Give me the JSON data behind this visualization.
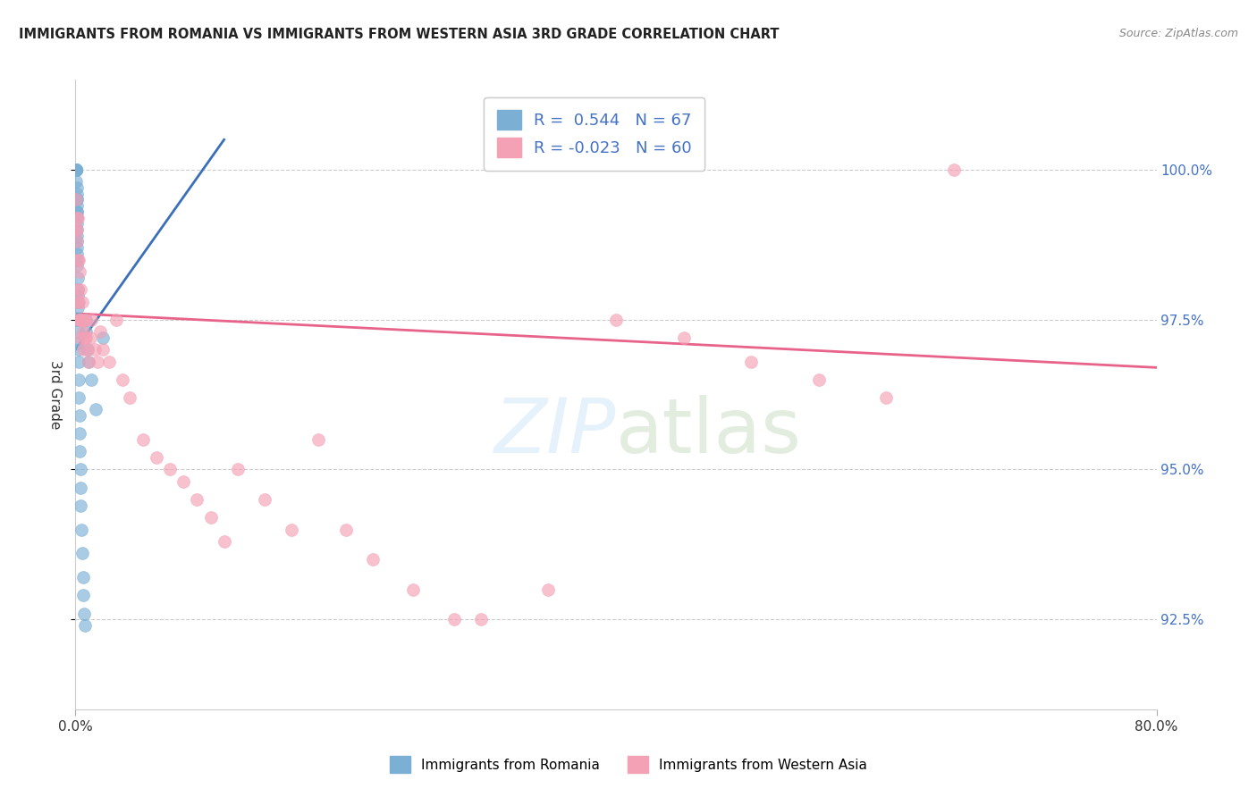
{
  "title": "IMMIGRANTS FROM ROMANIA VS IMMIGRANTS FROM WESTERN ASIA 3RD GRADE CORRELATION CHART",
  "source": "Source: ZipAtlas.com",
  "ylabel": "3rd Grade",
  "xlim": [
    0.0,
    80.0
  ],
  "ylim": [
    91.0,
    101.5
  ],
  "yticks": [
    92.5,
    95.0,
    97.5,
    100.0
  ],
  "ytick_labels": [
    "92.5%",
    "95.0%",
    "97.5%",
    "100.0%"
  ],
  "romania_color": "#7bafd4",
  "western_asia_color": "#f4a0b5",
  "romania_R": "0.544",
  "romania_N": "67",
  "western_asia_R": "-0.023",
  "western_asia_N": "60",
  "romania_line_color": "#3a6fba",
  "western_asia_line_color": "#e8638a",
  "legend_label_romania": "Immigrants from Romania",
  "legend_label_western_asia": "Immigrants from Western Asia",
  "romania_x": [
    0.02,
    0.02,
    0.02,
    0.03,
    0.03,
    0.03,
    0.04,
    0.04,
    0.04,
    0.04,
    0.05,
    0.05,
    0.05,
    0.05,
    0.06,
    0.06,
    0.06,
    0.07,
    0.07,
    0.07,
    0.08,
    0.08,
    0.08,
    0.09,
    0.09,
    0.1,
    0.1,
    0.1,
    0.11,
    0.11,
    0.12,
    0.12,
    0.13,
    0.13,
    0.14,
    0.14,
    0.15,
    0.15,
    0.16,
    0.16,
    0.17,
    0.18,
    0.19,
    0.2,
    0.21,
    0.22,
    0.24,
    0.26,
    0.28,
    0.3,
    0.32,
    0.35,
    0.38,
    0.4,
    0.45,
    0.5,
    0.55,
    0.6,
    0.65,
    0.7,
    0.75,
    0.8,
    0.9,
    1.0,
    1.2,
    1.5,
    2.0
  ],
  "romania_y": [
    100.0,
    100.0,
    100.0,
    100.0,
    100.0,
    100.0,
    100.0,
    100.0,
    100.0,
    100.0,
    100.0,
    100.0,
    100.0,
    100.0,
    100.0,
    100.0,
    100.0,
    100.0,
    100.0,
    99.8,
    99.7,
    99.6,
    99.5,
    99.4,
    99.3,
    99.5,
    99.3,
    99.2,
    99.1,
    99.0,
    98.9,
    98.8,
    98.7,
    98.6,
    98.5,
    98.4,
    98.2,
    98.0,
    97.9,
    97.8,
    97.7,
    97.5,
    97.3,
    97.1,
    97.0,
    96.8,
    96.5,
    96.2,
    95.9,
    95.6,
    95.3,
    95.0,
    94.7,
    94.4,
    94.0,
    93.6,
    93.2,
    92.9,
    92.6,
    92.4,
    97.5,
    97.3,
    97.0,
    96.8,
    96.5,
    96.0,
    97.2
  ],
  "western_asia_x": [
    0.05,
    0.08,
    0.1,
    0.12,
    0.15,
    0.18,
    0.2,
    0.22,
    0.25,
    0.28,
    0.3,
    0.35,
    0.38,
    0.4,
    0.45,
    0.5,
    0.55,
    0.6,
    0.65,
    0.7,
    0.8,
    0.9,
    1.0,
    1.1,
    1.2,
    1.4,
    1.6,
    1.8,
    2.0,
    2.5,
    3.0,
    3.5,
    4.0,
    5.0,
    6.0,
    7.0,
    8.0,
    9.0,
    10.0,
    11.0,
    12.0,
    14.0,
    16.0,
    18.0,
    20.0,
    22.0,
    25.0,
    28.0,
    30.0,
    35.0,
    40.0,
    45.0,
    50.0,
    55.0,
    60.0,
    0.06,
    0.14,
    0.32,
    0.75,
    65.0
  ],
  "western_asia_y": [
    99.5,
    99.2,
    98.8,
    99.0,
    98.5,
    99.2,
    98.0,
    98.5,
    97.8,
    97.5,
    98.3,
    97.5,
    98.0,
    97.2,
    97.5,
    97.8,
    97.3,
    97.0,
    97.5,
    97.2,
    97.5,
    97.0,
    96.8,
    97.2,
    97.5,
    97.0,
    96.8,
    97.3,
    97.0,
    96.8,
    97.5,
    96.5,
    96.2,
    95.5,
    95.2,
    95.0,
    94.8,
    94.5,
    94.2,
    93.8,
    95.0,
    94.5,
    94.0,
    95.5,
    94.0,
    93.5,
    93.0,
    92.5,
    92.5,
    93.0,
    97.5,
    97.2,
    96.8,
    96.5,
    96.2,
    99.0,
    97.8,
    97.5,
    97.2,
    100.0
  ],
  "romania_trendline_x": [
    0.0,
    11.0
  ],
  "romania_trendline_y": [
    97.0,
    100.5
  ],
  "western_asia_trendline_x": [
    0.0,
    80.0
  ],
  "western_asia_trendline_y": [
    97.6,
    96.7
  ]
}
